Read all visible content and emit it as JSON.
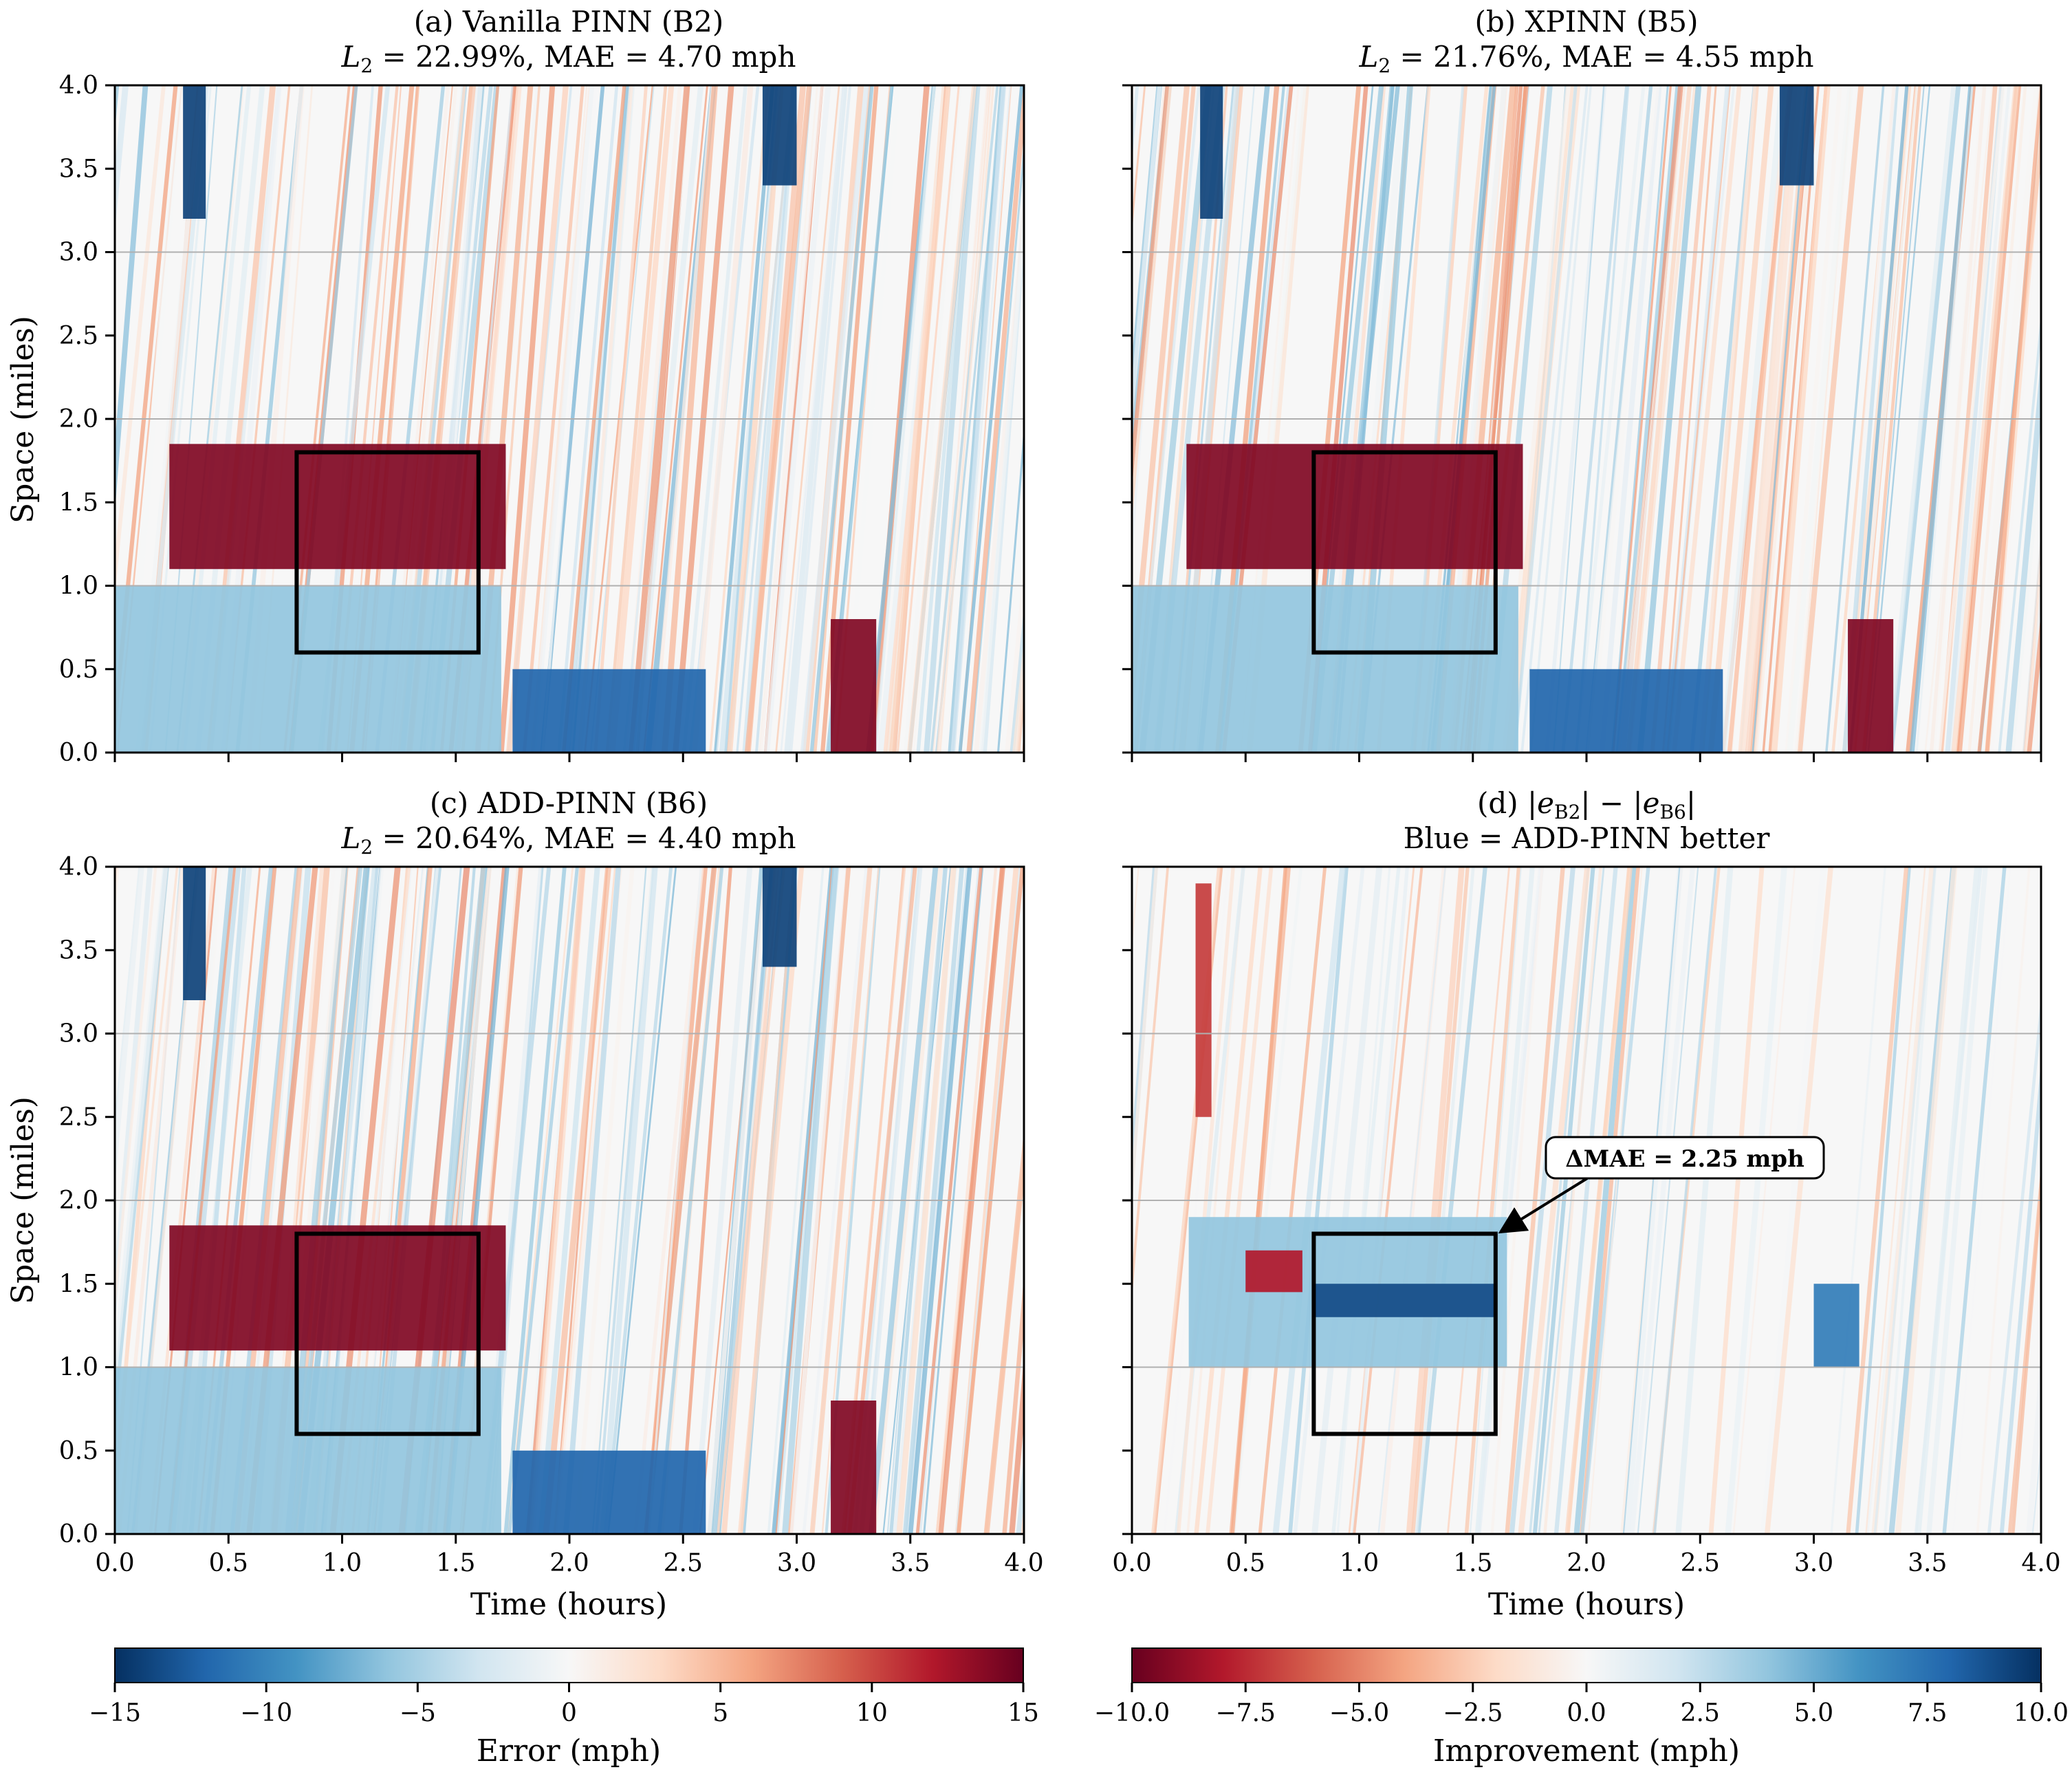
{
  "chart_data": [
    {
      "panel": "a",
      "type": "heatmap",
      "title": "(a) Vanilla PINN (B2)",
      "subtitle_l2": "22.99%",
      "subtitle_mae": "4.70 mph",
      "xlabel": "",
      "ylabel": "Space (miles)",
      "xlim": [
        0,
        4
      ],
      "ylim": [
        0,
        4
      ],
      "x_ticks": [],
      "y_ticks": [
        "0.0",
        "0.5",
        "1.0",
        "1.5",
        "2.0",
        "2.5",
        "3.0",
        "3.5",
        "4.0"
      ],
      "colormap": "RdBu_r",
      "clim": [
        -15,
        15
      ],
      "grid_lines_y": [
        1,
        2,
        3
      ],
      "highlight_box": {
        "x": [
          0.8,
          1.6
        ],
        "y": [
          0.6,
          1.8
        ]
      },
      "regions": [
        {
          "x": [
            0.24,
            1.72
          ],
          "y": [
            1.1,
            1.85
          ],
          "value": 14
        },
        {
          "x": [
            0.0,
            1.7
          ],
          "y": [
            0.0,
            1.0
          ],
          "value": -6
        },
        {
          "x": [
            1.75,
            2.6
          ],
          "y": [
            0.0,
            0.5
          ],
          "value": -12
        },
        {
          "x": [
            3.15,
            3.35
          ],
          "y": [
            0.0,
            0.8
          ],
          "value": 14
        },
        {
          "x": [
            0.3,
            0.4
          ],
          "y": [
            3.2,
            4.0
          ],
          "value": -14
        },
        {
          "x": [
            2.85,
            3.0
          ],
          "y": [
            3.4,
            4.0
          ],
          "value": -14
        }
      ]
    },
    {
      "panel": "b",
      "type": "heatmap",
      "title": "(b) XPINN (B5)",
      "subtitle_l2": "21.76%",
      "subtitle_mae": "4.55 mph",
      "xlabel": "",
      "ylabel": "",
      "xlim": [
        0,
        4
      ],
      "ylim": [
        0,
        4
      ],
      "x_ticks": [],
      "y_ticks": [],
      "colormap": "RdBu_r",
      "clim": [
        -15,
        15
      ],
      "grid_lines_y": [
        1,
        2,
        3
      ],
      "highlight_box": {
        "x": [
          0.8,
          1.6
        ],
        "y": [
          0.6,
          1.8
        ]
      },
      "regions": [
        {
          "x": [
            0.24,
            1.72
          ],
          "y": [
            1.1,
            1.85
          ],
          "value": 14
        },
        {
          "x": [
            0.0,
            1.7
          ],
          "y": [
            0.0,
            1.0
          ],
          "value": -6
        },
        {
          "x": [
            1.75,
            2.6
          ],
          "y": [
            0.0,
            0.5
          ],
          "value": -12
        },
        {
          "x": [
            3.15,
            3.35
          ],
          "y": [
            0.0,
            0.8
          ],
          "value": 14
        },
        {
          "x": [
            0.3,
            0.4
          ],
          "y": [
            3.2,
            4.0
          ],
          "value": -14
        },
        {
          "x": [
            2.85,
            3.0
          ],
          "y": [
            3.4,
            4.0
          ],
          "value": -14
        }
      ]
    },
    {
      "panel": "c",
      "type": "heatmap",
      "title": "(c) ADD-PINN (B6)",
      "subtitle_l2": "20.64%",
      "subtitle_mae": "4.40 mph",
      "xlabel": "Time (hours)",
      "ylabel": "Space (miles)",
      "xlim": [
        0,
        4
      ],
      "ylim": [
        0,
        4
      ],
      "x_ticks": [
        "0.0",
        "0.5",
        "1.0",
        "1.5",
        "2.0",
        "2.5",
        "3.0",
        "3.5",
        "4.0"
      ],
      "y_ticks": [
        "0.0",
        "0.5",
        "1.0",
        "1.5",
        "2.0",
        "2.5",
        "3.0",
        "3.5",
        "4.0"
      ],
      "colormap": "RdBu_r",
      "clim": [
        -15,
        15
      ],
      "grid_lines_y": [
        1,
        2,
        3
      ],
      "highlight_box": {
        "x": [
          0.8,
          1.6
        ],
        "y": [
          0.6,
          1.8
        ]
      },
      "regions": [
        {
          "x": [
            0.24,
            1.72
          ],
          "y": [
            1.1,
            1.85
          ],
          "value": 14
        },
        {
          "x": [
            0.0,
            1.7
          ],
          "y": [
            0.0,
            1.0
          ],
          "value": -6
        },
        {
          "x": [
            1.75,
            2.6
          ],
          "y": [
            0.0,
            0.5
          ],
          "value": -12
        },
        {
          "x": [
            3.15,
            3.35
          ],
          "y": [
            0.0,
            0.8
          ],
          "value": 14
        },
        {
          "x": [
            0.3,
            0.4
          ],
          "y": [
            3.2,
            4.0
          ],
          "value": -14
        },
        {
          "x": [
            2.85,
            3.0
          ],
          "y": [
            3.4,
            4.0
          ],
          "value": -14
        }
      ]
    },
    {
      "panel": "d",
      "type": "heatmap",
      "title_prefix": "(d) ",
      "subtitle": "Blue = ADD-PINN better",
      "xlabel": "Time (hours)",
      "ylabel": "",
      "xlim": [
        0,
        4
      ],
      "ylim": [
        0,
        4
      ],
      "x_ticks": [
        "0.0",
        "0.5",
        "1.0",
        "1.5",
        "2.0",
        "2.5",
        "3.0",
        "3.5",
        "4.0"
      ],
      "y_ticks": [],
      "colormap": "RdBu",
      "clim": [
        -10,
        10
      ],
      "grid_lines_y": [
        1,
        2,
        3
      ],
      "highlight_box": {
        "x": [
          0.8,
          1.6
        ],
        "y": [
          0.6,
          1.8
        ]
      },
      "annotation": {
        "text": "ΔMAE = 2.25 mph",
        "target": [
          1.6,
          1.8
        ],
        "text_at": [
          2.3,
          2.15
        ]
      },
      "regions": [
        {
          "x": [
            0.25,
            1.65
          ],
          "y": [
            1.0,
            1.9
          ],
          "value": 4
        },
        {
          "x": [
            0.8,
            1.6
          ],
          "y": [
            1.3,
            1.5
          ],
          "value": 9
        },
        {
          "x": [
            0.5,
            0.75
          ],
          "y": [
            1.45,
            1.7
          ],
          "value": -8
        },
        {
          "x": [
            0.28,
            0.35
          ],
          "y": [
            2.5,
            3.9
          ],
          "value": -7
        },
        {
          "x": [
            3.0,
            3.2
          ],
          "y": [
            1.0,
            1.5
          ],
          "value": 7
        }
      ]
    }
  ],
  "colorbars": [
    {
      "label": "Error (mph)",
      "ticks": [
        "−15",
        "−10",
        "−5",
        "0",
        "5",
        "10",
        "15"
      ],
      "colormap": "RdBu_r",
      "range": [
        -15,
        15
      ]
    },
    {
      "label": "Improvement (mph)",
      "ticks": [
        "−10.0",
        "−7.5",
        "−5.0",
        "−2.5",
        "0.0",
        "2.5",
        "5.0",
        "7.5",
        "10.0"
      ],
      "colormap": "RdBu",
      "range": [
        -10,
        10
      ]
    }
  ]
}
